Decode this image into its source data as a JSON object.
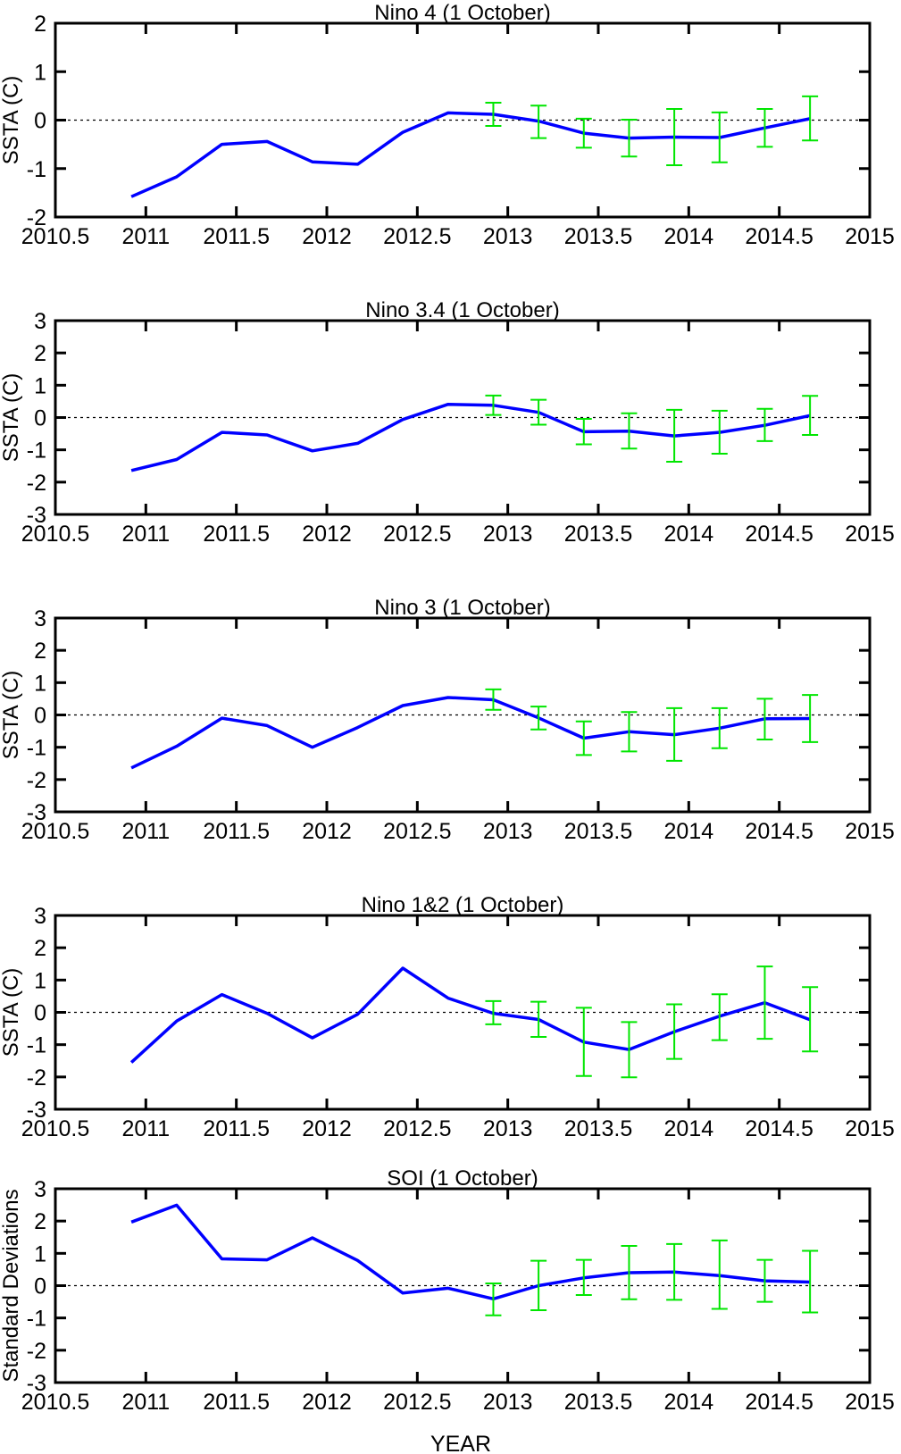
{
  "figure": {
    "xlabel": "YEAR"
  },
  "chart_data": [
    {
      "type": "line",
      "title": "Nino 4 (1 October)",
      "ylabel": "SSTA (C)",
      "xlim": [
        2010.5,
        2015
      ],
      "ylim": [
        -2,
        2
      ],
      "xticks": [
        2010.5,
        2011,
        2011.5,
        2012,
        2012.5,
        2013,
        2013.5,
        2014,
        2014.5,
        2015
      ],
      "yticks": [
        -2,
        -1,
        0,
        1,
        2
      ],
      "x": [
        2010.92,
        2011.17,
        2011.42,
        2011.67,
        2011.92,
        2012.17,
        2012.42,
        2012.67,
        2012.92,
        2013.17,
        2013.42,
        2013.67,
        2013.92,
        2014.17,
        2014.42,
        2014.67
      ],
      "values": [
        -1.58,
        -1.17,
        -0.5,
        -0.44,
        -0.86,
        -0.91,
        -0.25,
        0.15,
        0.12,
        -0.02,
        -0.27,
        -0.37,
        -0.35,
        -0.36,
        -0.16,
        0.03
      ],
      "error_start": 8,
      "error_low": [
        -0.12,
        -0.37,
        -0.57,
        -0.75,
        -0.93,
        -0.87,
        -0.55,
        -0.42
      ],
      "error_high": [
        0.36,
        0.3,
        0.03,
        0.01,
        0.23,
        0.16,
        0.23,
        0.49
      ]
    },
    {
      "type": "line",
      "title": "Nino 3.4 (1 October)",
      "ylabel": "SSTA (C)",
      "xlim": [
        2010.5,
        2015
      ],
      "ylim": [
        -3,
        3
      ],
      "xticks": [
        2010.5,
        2011,
        2011.5,
        2012,
        2012.5,
        2013,
        2013.5,
        2014,
        2014.5,
        2015
      ],
      "yticks": [
        -3,
        -2,
        -1,
        0,
        1,
        2,
        3
      ],
      "x": [
        2010.92,
        2011.17,
        2011.42,
        2011.67,
        2011.92,
        2012.17,
        2012.42,
        2012.67,
        2012.92,
        2013.17,
        2013.42,
        2013.67,
        2013.92,
        2014.17,
        2014.42,
        2014.67
      ],
      "values": [
        -1.64,
        -1.3,
        -0.46,
        -0.54,
        -1.03,
        -0.8,
        -0.06,
        0.41,
        0.38,
        0.16,
        -0.44,
        -0.42,
        -0.57,
        -0.46,
        -0.24,
        0.06
      ],
      "error_start": 8,
      "error_low": [
        0.08,
        -0.22,
        -0.83,
        -0.96,
        -1.37,
        -1.12,
        -0.73,
        -0.54
      ],
      "error_high": [
        0.68,
        0.55,
        -0.04,
        0.13,
        0.24,
        0.21,
        0.27,
        0.67
      ]
    },
    {
      "type": "line",
      "title": "Nino 3 (1 October)",
      "ylabel": "SSTA (C)",
      "xlim": [
        2010.5,
        2015
      ],
      "ylim": [
        -3,
        3
      ],
      "xticks": [
        2010.5,
        2011,
        2011.5,
        2012,
        2012.5,
        2013,
        2013.5,
        2014,
        2014.5,
        2015
      ],
      "yticks": [
        -3,
        -2,
        -1,
        0,
        1,
        2,
        3
      ],
      "x": [
        2010.92,
        2011.17,
        2011.42,
        2011.67,
        2011.92,
        2012.17,
        2012.42,
        2012.67,
        2012.92,
        2013.17,
        2013.42,
        2013.67,
        2013.92,
        2014.17,
        2014.42,
        2014.67
      ],
      "values": [
        -1.64,
        -0.97,
        -0.1,
        -0.33,
        -1.0,
        -0.39,
        0.29,
        0.54,
        0.47,
        -0.09,
        -0.72,
        -0.52,
        -0.61,
        -0.41,
        -0.12,
        -0.11
      ],
      "error_start": 8,
      "error_low": [
        0.16,
        -0.45,
        -1.24,
        -1.13,
        -1.42,
        -1.03,
        -0.76,
        -0.84
      ],
      "error_high": [
        0.79,
        0.26,
        -0.2,
        0.09,
        0.21,
        0.21,
        0.5,
        0.62
      ]
    },
    {
      "type": "line",
      "title": "Nino 1&2 (1 October)",
      "ylabel": "SSTA (C)",
      "xlim": [
        2010.5,
        2015
      ],
      "ylim": [
        -3,
        3
      ],
      "xticks": [
        2010.5,
        2011,
        2011.5,
        2012,
        2012.5,
        2013,
        2013.5,
        2014,
        2014.5,
        2015
      ],
      "yticks": [
        -3,
        -2,
        -1,
        0,
        1,
        2,
        3
      ],
      "x": [
        2010.92,
        2011.17,
        2011.42,
        2011.67,
        2011.92,
        2012.17,
        2012.42,
        2012.67,
        2012.92,
        2013.17,
        2013.42,
        2013.67,
        2013.92,
        2014.17,
        2014.42,
        2014.67
      ],
      "values": [
        -1.55,
        -0.27,
        0.55,
        -0.03,
        -0.79,
        -0.06,
        1.37,
        0.44,
        -0.03,
        -0.22,
        -0.92,
        -1.15,
        -0.6,
        -0.12,
        0.3,
        -0.23
      ],
      "error_start": 8,
      "error_low": [
        -0.37,
        -0.76,
        -1.97,
        -2.01,
        -1.44,
        -0.86,
        -0.82,
        -1.21
      ],
      "error_high": [
        0.35,
        0.33,
        0.14,
        -0.3,
        0.25,
        0.56,
        1.42,
        0.78
      ]
    },
    {
      "type": "line",
      "title": "SOI (1 October)",
      "ylabel": "Standard Deviations",
      "xlim": [
        2010.5,
        2015
      ],
      "ylim": [
        -3,
        3
      ],
      "xticks": [
        2010.5,
        2011,
        2011.5,
        2012,
        2012.5,
        2013,
        2013.5,
        2014,
        2014.5,
        2015
      ],
      "yticks": [
        -3,
        -2,
        -1,
        0,
        1,
        2,
        3
      ],
      "x": [
        2010.92,
        2011.17,
        2011.42,
        2011.67,
        2011.92,
        2012.17,
        2012.42,
        2012.67,
        2012.92,
        2013.17,
        2013.42,
        2013.67,
        2013.92,
        2014.17,
        2014.42,
        2014.67
      ],
      "values": [
        1.97,
        2.49,
        0.83,
        0.8,
        1.48,
        0.78,
        -0.23,
        -0.08,
        -0.41,
        0.0,
        0.24,
        0.4,
        0.42,
        0.31,
        0.15,
        0.11
      ],
      "error_start": 8,
      "error_low": [
        -0.92,
        -0.76,
        -0.29,
        -0.42,
        -0.44,
        -0.72,
        -0.5,
        -0.83
      ],
      "error_high": [
        0.07,
        0.77,
        0.8,
        1.23,
        1.29,
        1.4,
        0.8,
        1.08
      ]
    }
  ]
}
